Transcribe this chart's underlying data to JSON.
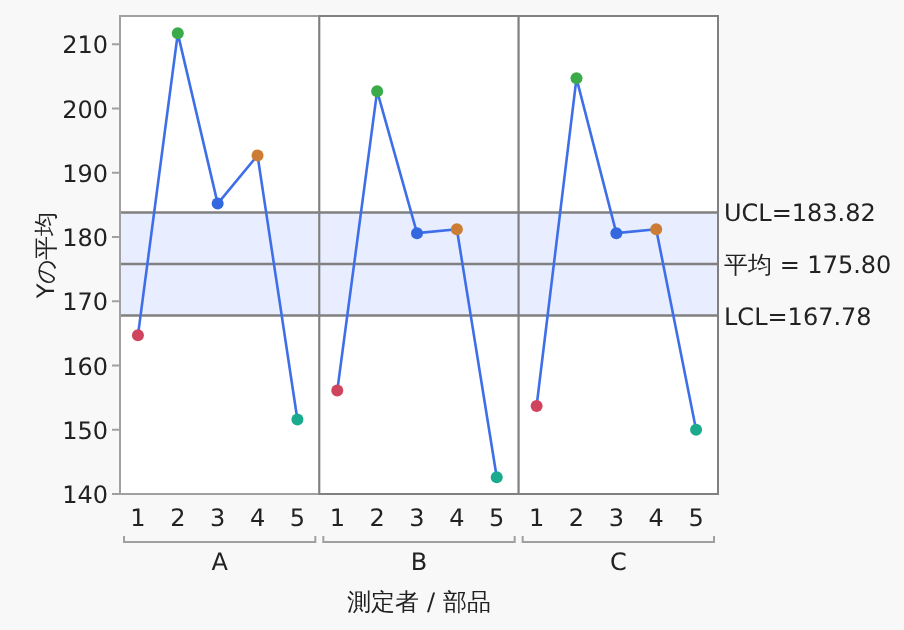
{
  "chart_data": [
    {
      "type": "line",
      "xlabel": "A",
      "ylabel": "Yの平均",
      "categories": [
        "1",
        "2",
        "3",
        "4",
        "5"
      ],
      "values": [
        164.7,
        211.7,
        185.2,
        192.7,
        151.6
      ],
      "color": "#3f6fe8",
      "colors": [
        "#d0455e",
        "#3bab4a",
        "#3468e0",
        "#cc7d33",
        "#1aab8f"
      ],
      "marker": "circle",
      "ylim": [
        140,
        214.4
      ],
      "yticks": [
        140,
        150,
        160,
        170,
        180,
        190,
        200,
        210
      ],
      "grid": false,
      "bands": [
        {
          "axis": "y",
          "from": 167.78,
          "to": 183.82,
          "color": "#e8eeff"
        }
      ],
      "ref_lines": [
        {
          "axis": "y",
          "value": 183.82,
          "color": "#808080"
        },
        {
          "axis": "y",
          "value": 175.8,
          "color": "#808080"
        },
        {
          "axis": "y",
          "value": 167.78,
          "color": "#808080"
        }
      ]
    },
    {
      "type": "line",
      "xlabel": "B",
      "categories": [
        "1",
        "2",
        "3",
        "4",
        "5"
      ],
      "values": [
        156.1,
        202.7,
        180.6,
        181.2,
        142.6
      ],
      "color": "#3f6fe8",
      "colors": [
        "#d0455e",
        "#3bab4a",
        "#3468e0",
        "#cc7d33",
        "#1aab8f"
      ],
      "marker": "circle",
      "ylim": [
        140,
        214.4
      ],
      "tick_labels": "x",
      "grid": false,
      "annotations": [
        "測定者 / 部品"
      ],
      "bands": [
        {
          "axis": "y",
          "from": 167.78,
          "to": 183.82,
          "color": "#e8eeff"
        }
      ],
      "ref_lines": [
        {
          "axis": "y",
          "value": 183.82,
          "color": "#808080"
        },
        {
          "axis": "y",
          "value": 175.8,
          "color": "#808080"
        },
        {
          "axis": "y",
          "value": 167.78,
          "color": "#808080"
        }
      ]
    },
    {
      "type": "line",
      "xlabel": "C",
      "categories": [
        "1",
        "2",
        "3",
        "4",
        "5"
      ],
      "values": [
        153.7,
        204.7,
        180.6,
        181.2,
        150.0
      ],
      "color": "#3f6fe8",
      "colors": [
        "#d0455e",
        "#3bab4a",
        "#3468e0",
        "#cc7d33",
        "#1aab8f"
      ],
      "marker": "circle",
      "ylim": [
        140,
        214.4
      ],
      "tick_labels": "x",
      "grid": false,
      "bands": [
        {
          "axis": "y",
          "from": 167.78,
          "to": 183.82,
          "color": "#e8eeff"
        }
      ],
      "ref_lines": [
        {
          "axis": "y",
          "value": 183.82,
          "color": "#808080",
          "label": "UCL=183.82"
        },
        {
          "axis": "y",
          "value": 175.8,
          "color": "#808080",
          "label": "平均 = 175.80"
        },
        {
          "axis": "y",
          "value": 167.78,
          "color": "#808080",
          "label": "LCL=167.78"
        }
      ]
    }
  ]
}
